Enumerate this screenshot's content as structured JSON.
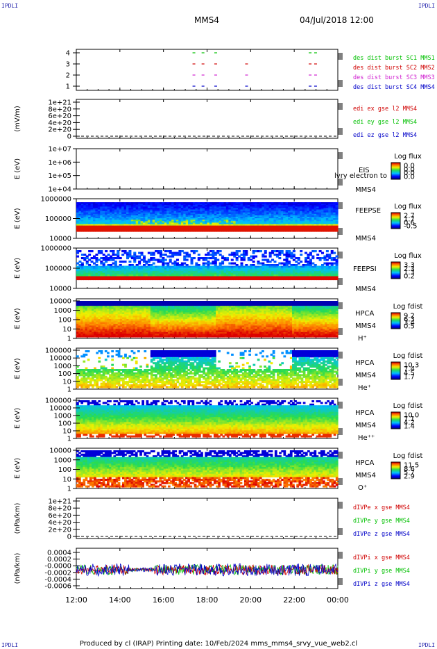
{
  "corner_tl": "IPDLI",
  "corner_tr": "IPDLI",
  "corner_bl": "IPDLI",
  "corner_br": "IPDLI",
  "header": {
    "spacecraft": "MMS4",
    "datetime": "04/Jul/2018 12:00"
  },
  "footer": "Produced by cl (IRAP)   Printing date: 10/Feb/2024   mms_mms4_srvy_vue_web2.cl",
  "x_axis": {
    "ticks": [
      "12:00",
      "14:00",
      "16:00",
      "18:00",
      "20:00",
      "22:00",
      "00:00"
    ]
  },
  "colors": {
    "blue": "#0000c8",
    "magenta": "#d020d0",
    "red": "#d00000",
    "green": "#00c000"
  },
  "chart_data": [
    {
      "id": "burst",
      "type": "scatter",
      "yticks": [
        "4",
        "3",
        "2",
        "1"
      ],
      "series": [
        {
          "name": "des dist burst SC1 MMS1",
          "color": "#00c000",
          "level": 4,
          "x": [
            "17:20",
            "17:45",
            "18:20",
            "22:40",
            "22:55"
          ]
        },
        {
          "name": "des dist burst SC2 MMS2",
          "color": "#d00000",
          "level": 3,
          "x": [
            "17:20",
            "17:45",
            "18:20",
            "19:45",
            "22:40",
            "22:55"
          ]
        },
        {
          "name": "des dist burst SC3 MMS3",
          "color": "#d020d0",
          "level": 2,
          "x": [
            "17:20",
            "17:45",
            "18:20",
            "19:45",
            "22:40",
            "22:55"
          ]
        },
        {
          "name": "des dist burst SC4 MMS4",
          "color": "#0000c8",
          "level": 1,
          "x": [
            "17:20",
            "17:45",
            "18:20",
            "19:45",
            "22:40",
            "22:55"
          ]
        }
      ]
    },
    {
      "id": "edi",
      "type": "line",
      "ylabel": "(mV/m)",
      "yticks": [
        "1e+21",
        "8e+20",
        "6e+20",
        "4e+20",
        "2e+20",
        "0"
      ],
      "legend": [
        {
          "name": "edi ex gse l2 MMS4",
          "color": "#d00000"
        },
        {
          "name": "edi ey gse l2 MMS4",
          "color": "#00c000"
        },
        {
          "name": "edi ez gse l2 MMS4",
          "color": "#0000c8"
        }
      ]
    },
    {
      "id": "eis",
      "type": "heatmap",
      "ylabel": "E (eV)",
      "yticks": [
        "1e+07",
        "1e+06",
        "1e+05",
        "1e+04"
      ],
      "right_labels": [
        "EIS",
        "MMS4"
      ],
      "overlay_text": "lvry electron to",
      "cbar": {
        "title": "Log flux",
        "ticks": [
          "0.0",
          "0.0",
          "0.0",
          "0.0"
        ]
      }
    },
    {
      "id": "feepse",
      "type": "heatmap",
      "ylabel": "E (eV)",
      "yticks": [
        "1000000",
        "100000",
        "10000"
      ],
      "right_labels": [
        "FEEPSE",
        "MMS4"
      ],
      "cbar": {
        "title": "Log flux",
        "ticks": [
          "2.7",
          "1.7",
          "0.6",
          "-0.5"
        ]
      }
    },
    {
      "id": "feepsi",
      "type": "heatmap",
      "ylabel": "E (eV)",
      "yticks": [
        "1000000",
        "100000",
        "10000"
      ],
      "right_labels": [
        "FEEPSI",
        "MMS4"
      ],
      "cbar": {
        "title": "Log flux",
        "ticks": [
          "3.3",
          "2.3",
          "1.3",
          "0.2"
        ]
      }
    },
    {
      "id": "hpca_h",
      "type": "heatmap",
      "ylabel": "E (eV)",
      "yticks": [
        "10000",
        "1000",
        "100",
        "10",
        "1"
      ],
      "right_labels": [
        "HPCA",
        "MMS4",
        "H⁺"
      ],
      "cbar": {
        "title": "Log fdist",
        "ticks": [
          "9.2",
          "6.3",
          "3.4",
          "0.5"
        ]
      }
    },
    {
      "id": "hpca_he1",
      "type": "heatmap",
      "ylabel": "E (eV)",
      "yticks": [
        "100000",
        "10000",
        "1000",
        "100",
        "10",
        "1"
      ],
      "right_labels": [
        "HPCA",
        "MMS4",
        "He⁺"
      ],
      "cbar": {
        "title": "Log fdist",
        "ticks": [
          "10.3",
          "7.4",
          "4.5",
          "1.7"
        ]
      }
    },
    {
      "id": "hpca_he2",
      "type": "heatmap",
      "ylabel": "E (eV)",
      "yticks": [
        "100000",
        "10000",
        "1000",
        "100",
        "10",
        "1"
      ],
      "right_labels": [
        "HPCA",
        "MMS4",
        "He⁺⁺"
      ],
      "cbar": {
        "title": "Log fdist",
        "ticks": [
          "10.0",
          "7.1",
          "4.2",
          "1.4"
        ]
      }
    },
    {
      "id": "hpca_o",
      "type": "heatmap",
      "ylabel": "E (eV)",
      "yticks": [
        "10000",
        "1000",
        "100",
        "10",
        "1"
      ],
      "right_labels": [
        "HPCA",
        "MMS4",
        "O⁺"
      ],
      "cbar": {
        "title": "Log fdist",
        "ticks": [
          "11.5",
          "8.6",
          "5.7",
          "2.9"
        ]
      }
    },
    {
      "id": "dpe",
      "type": "line",
      "ylabel": "(nPa/km)",
      "yticks": [
        "1e+21",
        "8e+20",
        "6e+20",
        "4e+20",
        "2e+20",
        "0"
      ],
      "legend": [
        {
          "name": "dIVPe x gse MMS4",
          "color": "#d00000"
        },
        {
          "name": "dIVPe y gse MMS4",
          "color": "#00c000"
        },
        {
          "name": "dIVPe z gse MMS4",
          "color": "#0000c8"
        }
      ]
    },
    {
      "id": "dpi",
      "type": "line",
      "ylabel": "(nPa/km)",
      "yticks": [
        "0.0004",
        "0.0002",
        "-0.0000",
        "-0.0002",
        "-0.0004",
        "-0.0006"
      ],
      "legend": [
        {
          "name": "dIVPi x gse MMS4",
          "color": "#d00000"
        },
        {
          "name": "dIVPi y gse MMS4",
          "color": "#00c000"
        },
        {
          "name": "dIVPi z gse MMS4",
          "color": "#0000c8"
        }
      ]
    }
  ]
}
